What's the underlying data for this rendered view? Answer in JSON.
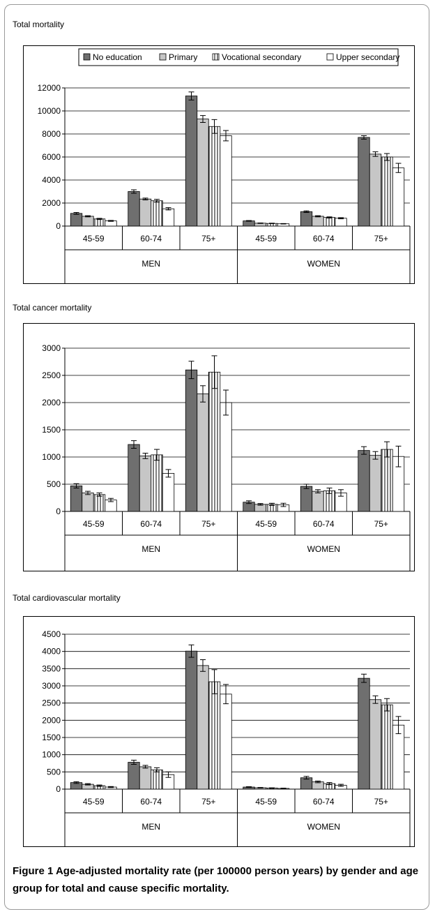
{
  "charts": [
    {
      "panel_title": "Total mortality",
      "type": "bar",
      "y_ticks": [
        "0",
        "2000",
        "4000",
        "6000",
        "8000",
        "10000",
        "12000"
      ],
      "ylim": [
        0,
        12000
      ],
      "groups": [
        "MEN",
        "WOMEN"
      ],
      "categories": [
        "45-59",
        "60-74",
        "75+",
        "45-59",
        "60-74",
        "75+"
      ],
      "legend": [
        "No education",
        "Primary",
        "Vocational secondary",
        "Upper secondary"
      ],
      "grid": true,
      "legend_position": "top",
      "series": [
        {
          "name": "No education",
          "values": [
            1100,
            3000,
            11300,
            450,
            1250,
            7700
          ],
          "err": [
            80,
            150,
            350,
            30,
            70,
            150
          ]
        },
        {
          "name": "Primary",
          "values": [
            850,
            2350,
            9300,
            250,
            850,
            6250
          ],
          "err": [
            50,
            80,
            300,
            20,
            50,
            200
          ]
        },
        {
          "name": "Vocational secondary",
          "values": [
            620,
            2200,
            8650,
            230,
            750,
            6000
          ],
          "err": [
            50,
            120,
            600,
            20,
            50,
            300
          ]
        },
        {
          "name": "Upper secondary",
          "values": [
            450,
            1500,
            7850,
            200,
            680,
            5050
          ],
          "err": [
            40,
            100,
            450,
            20,
            50,
            400
          ]
        }
      ]
    },
    {
      "panel_title": "Total cancer mortality",
      "type": "bar",
      "y_ticks": [
        "0",
        "500",
        "1000",
        "1500",
        "2000",
        "2500",
        "3000"
      ],
      "ylim": [
        0,
        3000
      ],
      "groups": [
        "MEN",
        "WOMEN"
      ],
      "categories": [
        "45-59",
        "60-74",
        "75+",
        "45-59",
        "60-74",
        "75+"
      ],
      "grid": true,
      "series": [
        {
          "name": "No education",
          "values": [
            470,
            1230,
            2600,
            170,
            460,
            1120
          ],
          "err": [
            40,
            70,
            160,
            25,
            40,
            70
          ]
        },
        {
          "name": "Primary",
          "values": [
            340,
            1020,
            2160,
            130,
            370,
            1030
          ],
          "err": [
            30,
            50,
            150,
            15,
            30,
            70
          ]
        },
        {
          "name": "Vocational secondary",
          "values": [
            310,
            1040,
            2560,
            130,
            380,
            1140
          ],
          "err": [
            30,
            100,
            300,
            20,
            50,
            140
          ]
        },
        {
          "name": "Upper secondary",
          "values": [
            210,
            700,
            2000,
            120,
            340,
            1010
          ],
          "err": [
            30,
            70,
            230,
            30,
            60,
            190
          ]
        }
      ]
    },
    {
      "panel_title": "Total cardiovascular mortality",
      "type": "bar",
      "y_ticks": [
        "0",
        "500",
        "1000",
        "1500",
        "2000",
        "2500",
        "3000",
        "3500",
        "4000",
        "4500"
      ],
      "ylim": [
        0,
        4500
      ],
      "groups": [
        "MEN",
        "WOMEN"
      ],
      "categories": [
        "45-59",
        "60-74",
        "75+",
        "45-59",
        "60-74",
        "75+"
      ],
      "grid": true,
      "series": [
        {
          "name": "No education",
          "values": [
            190,
            780,
            4010,
            60,
            330,
            3220
          ],
          "err": [
            25,
            60,
            180,
            10,
            40,
            120
          ]
        },
        {
          "name": "Primary",
          "values": [
            140,
            650,
            3590,
            40,
            210,
            2600
          ],
          "err": [
            20,
            40,
            170,
            8,
            25,
            110
          ]
        },
        {
          "name": "Vocational secondary",
          "values": [
            100,
            560,
            3120,
            30,
            160,
            2450
          ],
          "err": [
            20,
            60,
            350,
            8,
            30,
            180
          ]
        },
        {
          "name": "Upper secondary",
          "values": [
            60,
            420,
            2760,
            20,
            110,
            1860
          ],
          "err": [
            15,
            80,
            280,
            8,
            30,
            250
          ]
        }
      ]
    }
  ],
  "caption": {
    "label": "Figure 1",
    "text": " Age-adjusted mortality rate (per 100000 person years) by gender and age group for total and cause specific mortality."
  },
  "colors": {
    "No education": "#6f6f6f",
    "Primary": "#c6c6c6",
    "Vocational secondary": "#ffffff",
    "Upper secondary": "#ffffff",
    "frame": "#9a9a9a"
  },
  "chart_data": [
    {
      "type": "bar",
      "title": "Total mortality",
      "categories": [
        "MEN 45-59",
        "MEN 60-74",
        "MEN 75+",
        "WOMEN 45-59",
        "WOMEN 60-74",
        "WOMEN 75+"
      ],
      "series": [
        {
          "name": "No education",
          "values": [
            1100,
            3000,
            11300,
            450,
            1250,
            7700
          ]
        },
        {
          "name": "Primary",
          "values": [
            850,
            2350,
            9300,
            250,
            850,
            6250
          ]
        },
        {
          "name": "Vocational secondary",
          "values": [
            620,
            2200,
            8650,
            230,
            750,
            6000
          ]
        },
        {
          "name": "Upper secondary",
          "values": [
            450,
            1500,
            7850,
            200,
            680,
            5050
          ]
        }
      ],
      "ylim": [
        0,
        12000
      ]
    },
    {
      "type": "bar",
      "title": "Total cancer mortality",
      "categories": [
        "MEN 45-59",
        "MEN 60-74",
        "MEN 75+",
        "WOMEN 45-59",
        "WOMEN 60-74",
        "WOMEN 75+"
      ],
      "series": [
        {
          "name": "No education",
          "values": [
            470,
            1230,
            2600,
            170,
            460,
            1120
          ]
        },
        {
          "name": "Primary",
          "values": [
            340,
            1020,
            2160,
            130,
            370,
            1030
          ]
        },
        {
          "name": "Vocational secondary",
          "values": [
            310,
            1040,
            2560,
            130,
            380,
            1140
          ]
        },
        {
          "name": "Upper secondary",
          "values": [
            210,
            700,
            2000,
            120,
            340,
            1010
          ]
        }
      ],
      "ylim": [
        0,
        3000
      ]
    },
    {
      "type": "bar",
      "title": "Total cardiovascular mortality",
      "categories": [
        "MEN 45-59",
        "MEN 60-74",
        "MEN 75+",
        "WOMEN 45-59",
        "WOMEN 60-74",
        "WOMEN 75+"
      ],
      "series": [
        {
          "name": "No education",
          "values": [
            190,
            780,
            4010,
            60,
            330,
            3220
          ]
        },
        {
          "name": "Primary",
          "values": [
            140,
            650,
            3590,
            40,
            210,
            2600
          ]
        },
        {
          "name": "Vocational secondary",
          "values": [
            100,
            560,
            3120,
            30,
            160,
            2450
          ]
        },
        {
          "name": "Upper secondary",
          "values": [
            60,
            420,
            2760,
            20,
            110,
            1860
          ]
        }
      ],
      "ylim": [
        0,
        4500
      ]
    }
  ]
}
